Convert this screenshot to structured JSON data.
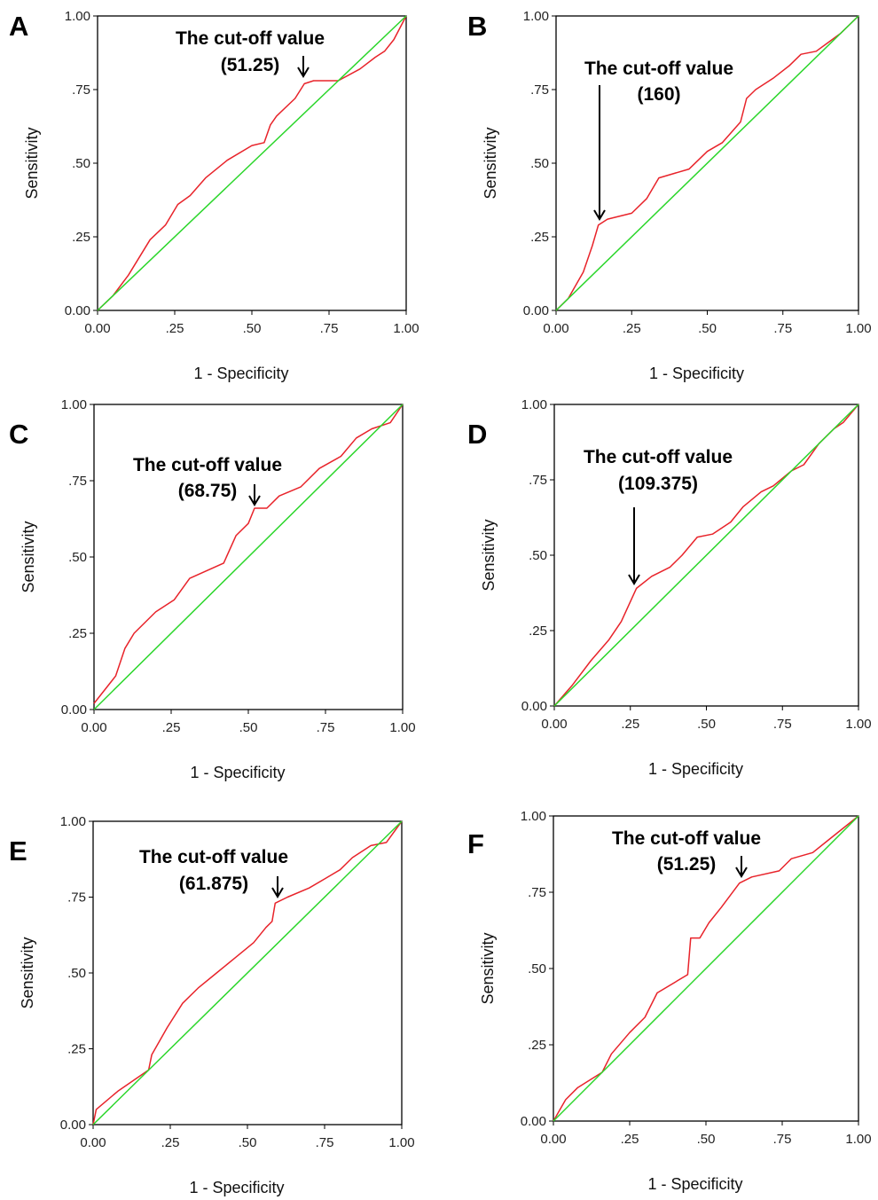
{
  "figure": {
    "colors": {
      "roc": "#e8232a",
      "reference": "#2bd62b",
      "axes": "#000000",
      "arrow": "#000000"
    }
  },
  "chart_data": [
    {
      "type": "line",
      "panel_label": "A",
      "xlabel": "1 - Specificity",
      "ylabel": "Sensitivity",
      "xlim": [
        0,
        1
      ],
      "ylim": [
        0,
        1
      ],
      "x_ticks": [
        "0.00",
        ".25",
        ".50",
        ".75",
        "1.00"
      ],
      "y_ticks": [
        "0.00",
        ".25",
        ".50",
        ".75",
        "1.00"
      ],
      "grid": false,
      "annotation": {
        "lines": [
          "The cut-off value",
          "(51.25)"
        ],
        "point": [
          0.67,
          0.77
        ]
      },
      "series": [
        {
          "values": [
            [
              0,
              0
            ],
            [
              0.05,
              0.05
            ],
            [
              0.1,
              0.12
            ],
            [
              0.17,
              0.24
            ],
            [
              0.22,
              0.29
            ],
            [
              0.26,
              0.36
            ],
            [
              0.3,
              0.39
            ],
            [
              0.35,
              0.45
            ],
            [
              0.42,
              0.51
            ],
            [
              0.5,
              0.56
            ],
            [
              0.54,
              0.57
            ],
            [
              0.56,
              0.63
            ],
            [
              0.58,
              0.66
            ],
            [
              0.64,
              0.72
            ],
            [
              0.67,
              0.77
            ],
            [
              0.7,
              0.78
            ],
            [
              0.78,
              0.78
            ],
            [
              0.85,
              0.82
            ],
            [
              0.9,
              0.86
            ],
            [
              0.93,
              0.88
            ],
            [
              0.96,
              0.92
            ],
            [
              1,
              1
            ]
          ]
        },
        {
          "values": [
            [
              0,
              0
            ],
            [
              1,
              1
            ]
          ]
        }
      ]
    },
    {
      "type": "line",
      "panel_label": "B",
      "xlabel": "1 - Specificity",
      "ylabel": "Sensitivity",
      "xlim": [
        0,
        1
      ],
      "ylim": [
        0,
        1
      ],
      "x_ticks": [
        "0.00",
        ".25",
        ".50",
        ".75",
        "1.00"
      ],
      "y_ticks": [
        "0.00",
        ".25",
        ".50",
        ".75",
        "1.00"
      ],
      "grid": false,
      "annotation": {
        "lines": [
          "The cut-off value",
          "(160)"
        ],
        "point": [
          0.14,
          0.29
        ]
      },
      "series": [
        {
          "values": [
            [
              0,
              0
            ],
            [
              0.04,
              0.04
            ],
            [
              0.09,
              0.13
            ],
            [
              0.12,
              0.22
            ],
            [
              0.14,
              0.29
            ],
            [
              0.17,
              0.31
            ],
            [
              0.25,
              0.33
            ],
            [
              0.3,
              0.38
            ],
            [
              0.34,
              0.45
            ],
            [
              0.44,
              0.48
            ],
            [
              0.5,
              0.54
            ],
            [
              0.55,
              0.57
            ],
            [
              0.61,
              0.64
            ],
            [
              0.63,
              0.72
            ],
            [
              0.66,
              0.75
            ],
            [
              0.72,
              0.79
            ],
            [
              0.77,
              0.83
            ],
            [
              0.81,
              0.87
            ],
            [
              0.86,
              0.88
            ],
            [
              0.9,
              0.91
            ],
            [
              0.94,
              0.94
            ],
            [
              1,
              1
            ]
          ]
        },
        {
          "values": [
            [
              0,
              0
            ],
            [
              1,
              1
            ]
          ]
        }
      ]
    },
    {
      "type": "line",
      "panel_label": "C",
      "xlabel": "1 - Specificity",
      "ylabel": "Sensitivity",
      "xlim": [
        0,
        1
      ],
      "ylim": [
        0,
        1
      ],
      "x_ticks": [
        "0.00",
        ".25",
        ".50",
        ".75",
        "1.00"
      ],
      "y_ticks": [
        "0.00",
        ".25",
        ".50",
        ".75",
        "1.00"
      ],
      "grid": false,
      "annotation": {
        "lines": [
          "The cut-off value",
          "(68.75)"
        ],
        "point": [
          0.52,
          0.66
        ]
      },
      "series": [
        {
          "values": [
            [
              0,
              0.02
            ],
            [
              0.07,
              0.11
            ],
            [
              0.1,
              0.2
            ],
            [
              0.13,
              0.25
            ],
            [
              0.2,
              0.32
            ],
            [
              0.26,
              0.36
            ],
            [
              0.31,
              0.43
            ],
            [
              0.42,
              0.48
            ],
            [
              0.46,
              0.57
            ],
            [
              0.5,
              0.61
            ],
            [
              0.52,
              0.66
            ],
            [
              0.56,
              0.66
            ],
            [
              0.6,
              0.7
            ],
            [
              0.67,
              0.73
            ],
            [
              0.73,
              0.79
            ],
            [
              0.8,
              0.83
            ],
            [
              0.85,
              0.89
            ],
            [
              0.9,
              0.92
            ],
            [
              0.96,
              0.94
            ],
            [
              1,
              1
            ]
          ]
        },
        {
          "values": [
            [
              0,
              0
            ],
            [
              1,
              1
            ]
          ]
        }
      ]
    },
    {
      "type": "line",
      "panel_label": "D",
      "xlabel": "1 - Specificity",
      "ylabel": "Sensitivity",
      "xlim": [
        0,
        1
      ],
      "ylim": [
        0,
        1
      ],
      "x_ticks": [
        "0.00",
        ".25",
        ".50",
        ".75",
        "1.00"
      ],
      "y_ticks": [
        "0.00",
        ".25",
        ".50",
        ".75",
        "1.00"
      ],
      "grid": false,
      "annotation": {
        "lines": [
          "The cut-off value",
          "(109.375)"
        ],
        "point": [
          0.27,
          0.39
        ]
      },
      "series": [
        {
          "values": [
            [
              0,
              0
            ],
            [
              0.06,
              0.07
            ],
            [
              0.12,
              0.15
            ],
            [
              0.18,
              0.22
            ],
            [
              0.22,
              0.28
            ],
            [
              0.27,
              0.39
            ],
            [
              0.32,
              0.43
            ],
            [
              0.38,
              0.46
            ],
            [
              0.42,
              0.5
            ],
            [
              0.47,
              0.56
            ],
            [
              0.52,
              0.57
            ],
            [
              0.58,
              0.61
            ],
            [
              0.62,
              0.66
            ],
            [
              0.68,
              0.71
            ],
            [
              0.72,
              0.73
            ],
            [
              0.78,
              0.78
            ],
            [
              0.82,
              0.8
            ],
            [
              0.87,
              0.87
            ],
            [
              0.92,
              0.92
            ],
            [
              0.95,
              0.94
            ],
            [
              1,
              1
            ]
          ]
        },
        {
          "values": [
            [
              0,
              0
            ],
            [
              1,
              1
            ]
          ]
        }
      ]
    },
    {
      "type": "line",
      "panel_label": "E",
      "xlabel": "1 - Specificity",
      "ylabel": "Sensitivity",
      "xlim": [
        0,
        1
      ],
      "ylim": [
        0,
        1
      ],
      "x_ticks": [
        "0.00",
        ".25",
        ".50",
        ".75",
        "1.00"
      ],
      "y_ticks": [
        "0.00",
        ".25",
        ".50",
        ".75",
        "1.00"
      ],
      "grid": false,
      "annotation": {
        "lines": [
          "The cut-off value",
          "(61.875)"
        ],
        "point": [
          0.59,
          0.73
        ]
      },
      "series": [
        {
          "values": [
            [
              0,
              0
            ],
            [
              0.01,
              0.05
            ],
            [
              0.08,
              0.11
            ],
            [
              0.18,
              0.18
            ],
            [
              0.19,
              0.23
            ],
            [
              0.24,
              0.32
            ],
            [
              0.29,
              0.4
            ],
            [
              0.34,
              0.45
            ],
            [
              0.4,
              0.5
            ],
            [
              0.46,
              0.55
            ],
            [
              0.52,
              0.6
            ],
            [
              0.56,
              0.65
            ],
            [
              0.58,
              0.67
            ],
            [
              0.59,
              0.73
            ],
            [
              0.63,
              0.75
            ],
            [
              0.7,
              0.78
            ],
            [
              0.75,
              0.81
            ],
            [
              0.8,
              0.84
            ],
            [
              0.84,
              0.88
            ],
            [
              0.9,
              0.92
            ],
            [
              0.95,
              0.93
            ],
            [
              1,
              1
            ]
          ]
        },
        {
          "values": [
            [
              0,
              0
            ],
            [
              1,
              1
            ]
          ]
        }
      ]
    },
    {
      "type": "line",
      "panel_label": "F",
      "xlabel": "1 - Specificity",
      "ylabel": "Sensitivity",
      "xlim": [
        0,
        1
      ],
      "ylim": [
        0,
        1
      ],
      "x_ticks": [
        "0.00",
        ".25",
        ".50",
        ".75",
        "1.00"
      ],
      "y_ticks": [
        "0.00",
        ".25",
        ".50",
        ".75",
        "1.00"
      ],
      "grid": false,
      "annotation": {
        "lines": [
          "The cut-off value",
          "(51.25)"
        ],
        "point": [
          0.61,
          0.78
        ]
      },
      "series": [
        {
          "values": [
            [
              0,
              0
            ],
            [
              0.04,
              0.07
            ],
            [
              0.08,
              0.11
            ],
            [
              0.16,
              0.16
            ],
            [
              0.19,
              0.22
            ],
            [
              0.25,
              0.29
            ],
            [
              0.3,
              0.34
            ],
            [
              0.34,
              0.42
            ],
            [
              0.44,
              0.48
            ],
            [
              0.45,
              0.6
            ],
            [
              0.48,
              0.6
            ],
            [
              0.51,
              0.65
            ],
            [
              0.55,
              0.7
            ],
            [
              0.58,
              0.74
            ],
            [
              0.61,
              0.78
            ],
            [
              0.65,
              0.8
            ],
            [
              0.74,
              0.82
            ],
            [
              0.78,
              0.86
            ],
            [
              0.85,
              0.88
            ],
            [
              0.9,
              0.92
            ],
            [
              1,
              1
            ]
          ]
        },
        {
          "values": [
            [
              0,
              0
            ],
            [
              1,
              1
            ]
          ]
        }
      ]
    }
  ]
}
